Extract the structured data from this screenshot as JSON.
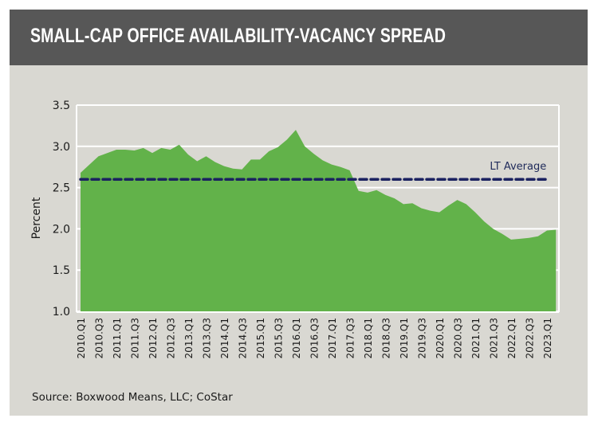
{
  "header": {
    "title": "SMALL-CAP OFFICE AVAILABILITY-VACANCY SPREAD"
  },
  "footer": {
    "source": "Source: Boxwood Means, LLC; CoStar"
  },
  "colors": {
    "header_bg": "#575757",
    "card_bg": "#d9d8d2",
    "area_fill": "#62b24a",
    "lt_average_line": "#1b2260",
    "gridline": "#ffffff"
  },
  "chart_data": {
    "type": "area",
    "title": "SMALL-CAP OFFICE AVAILABILITY-VACANCY SPREAD",
    "xlabel": "",
    "ylabel": "Percent",
    "ylim": [
      1.0,
      3.5
    ],
    "yticks": [
      "1.0",
      "1.5",
      "2.0",
      "2.5",
      "3.0",
      "3.5"
    ],
    "ytick_values": [
      1.0,
      1.5,
      2.0,
      2.5,
      3.0,
      3.5
    ],
    "grid": true,
    "x": [
      "2010.Q1",
      "2010.Q2",
      "2010.Q3",
      "2010.Q4",
      "2011.Q1",
      "2011.Q2",
      "2011.Q3",
      "2011.Q4",
      "2012.Q1",
      "2012.Q2",
      "2012.Q3",
      "2012.Q4",
      "2013.Q1",
      "2013.Q2",
      "2013.Q3",
      "2013.Q4",
      "2014.Q1",
      "2014.Q2",
      "2014.Q3",
      "2014.Q4",
      "2015.Q1",
      "2015.Q2",
      "2015.Q3",
      "2015.Q4",
      "2016.Q1",
      "2016.Q2",
      "2016.Q3",
      "2016.Q4",
      "2017.Q1",
      "2017.Q2",
      "2017.Q3",
      "2017.Q4",
      "2018.Q1",
      "2018.Q2",
      "2018.Q3",
      "2018.Q4",
      "2019.Q1",
      "2019.Q2",
      "2019.Q3",
      "2019.Q4",
      "2020.Q1",
      "2020.Q2",
      "2020.Q3",
      "2020.Q4",
      "2021.Q1",
      "2021.Q2",
      "2021.Q3",
      "2021.Q4",
      "2022.Q1",
      "2022.Q2",
      "2022.Q3",
      "2022.Q4",
      "2023.Q1",
      "2023.Q2"
    ],
    "xtick_labels": [
      "2010.Q1",
      "2010.Q3",
      "2011.Q1",
      "2011.Q3",
      "2012.Q1",
      "2012.Q3",
      "2013.Q1",
      "2013.Q3",
      "2014.Q1",
      "2014.Q3",
      "2015.Q1",
      "2015.Q3",
      "2016.Q1",
      "2016.Q3",
      "2017.Q1",
      "2017.Q3",
      "2018.Q1",
      "2018.Q3",
      "2019.Q1",
      "2019.Q3",
      "2020.Q1",
      "2020.Q3",
      "2021.Q1",
      "2021.Q3",
      "2022.Q1",
      "2022.Q3",
      "2023.Q1"
    ],
    "series": [
      {
        "name": "Availability-Vacancy Spread",
        "values": [
          2.68,
          2.78,
          2.88,
          2.92,
          2.96,
          2.96,
          2.95,
          2.98,
          2.92,
          2.98,
          2.96,
          3.02,
          2.9,
          2.82,
          2.88,
          2.81,
          2.76,
          2.73,
          2.72,
          2.84,
          2.84,
          2.94,
          2.99,
          3.08,
          3.2,
          3.0,
          2.91,
          2.83,
          2.78,
          2.75,
          2.71,
          2.46,
          2.44,
          2.47,
          2.41,
          2.37,
          2.3,
          2.31,
          2.25,
          2.22,
          2.2,
          2.28,
          2.35,
          2.3,
          2.2,
          2.09,
          2.0,
          1.94,
          1.87,
          1.88,
          1.89,
          1.91,
          1.98,
          1.99
        ]
      }
    ],
    "reference_line": {
      "name": "LT Average",
      "value": 2.6
    },
    "annotations": [
      "LT Average"
    ]
  }
}
